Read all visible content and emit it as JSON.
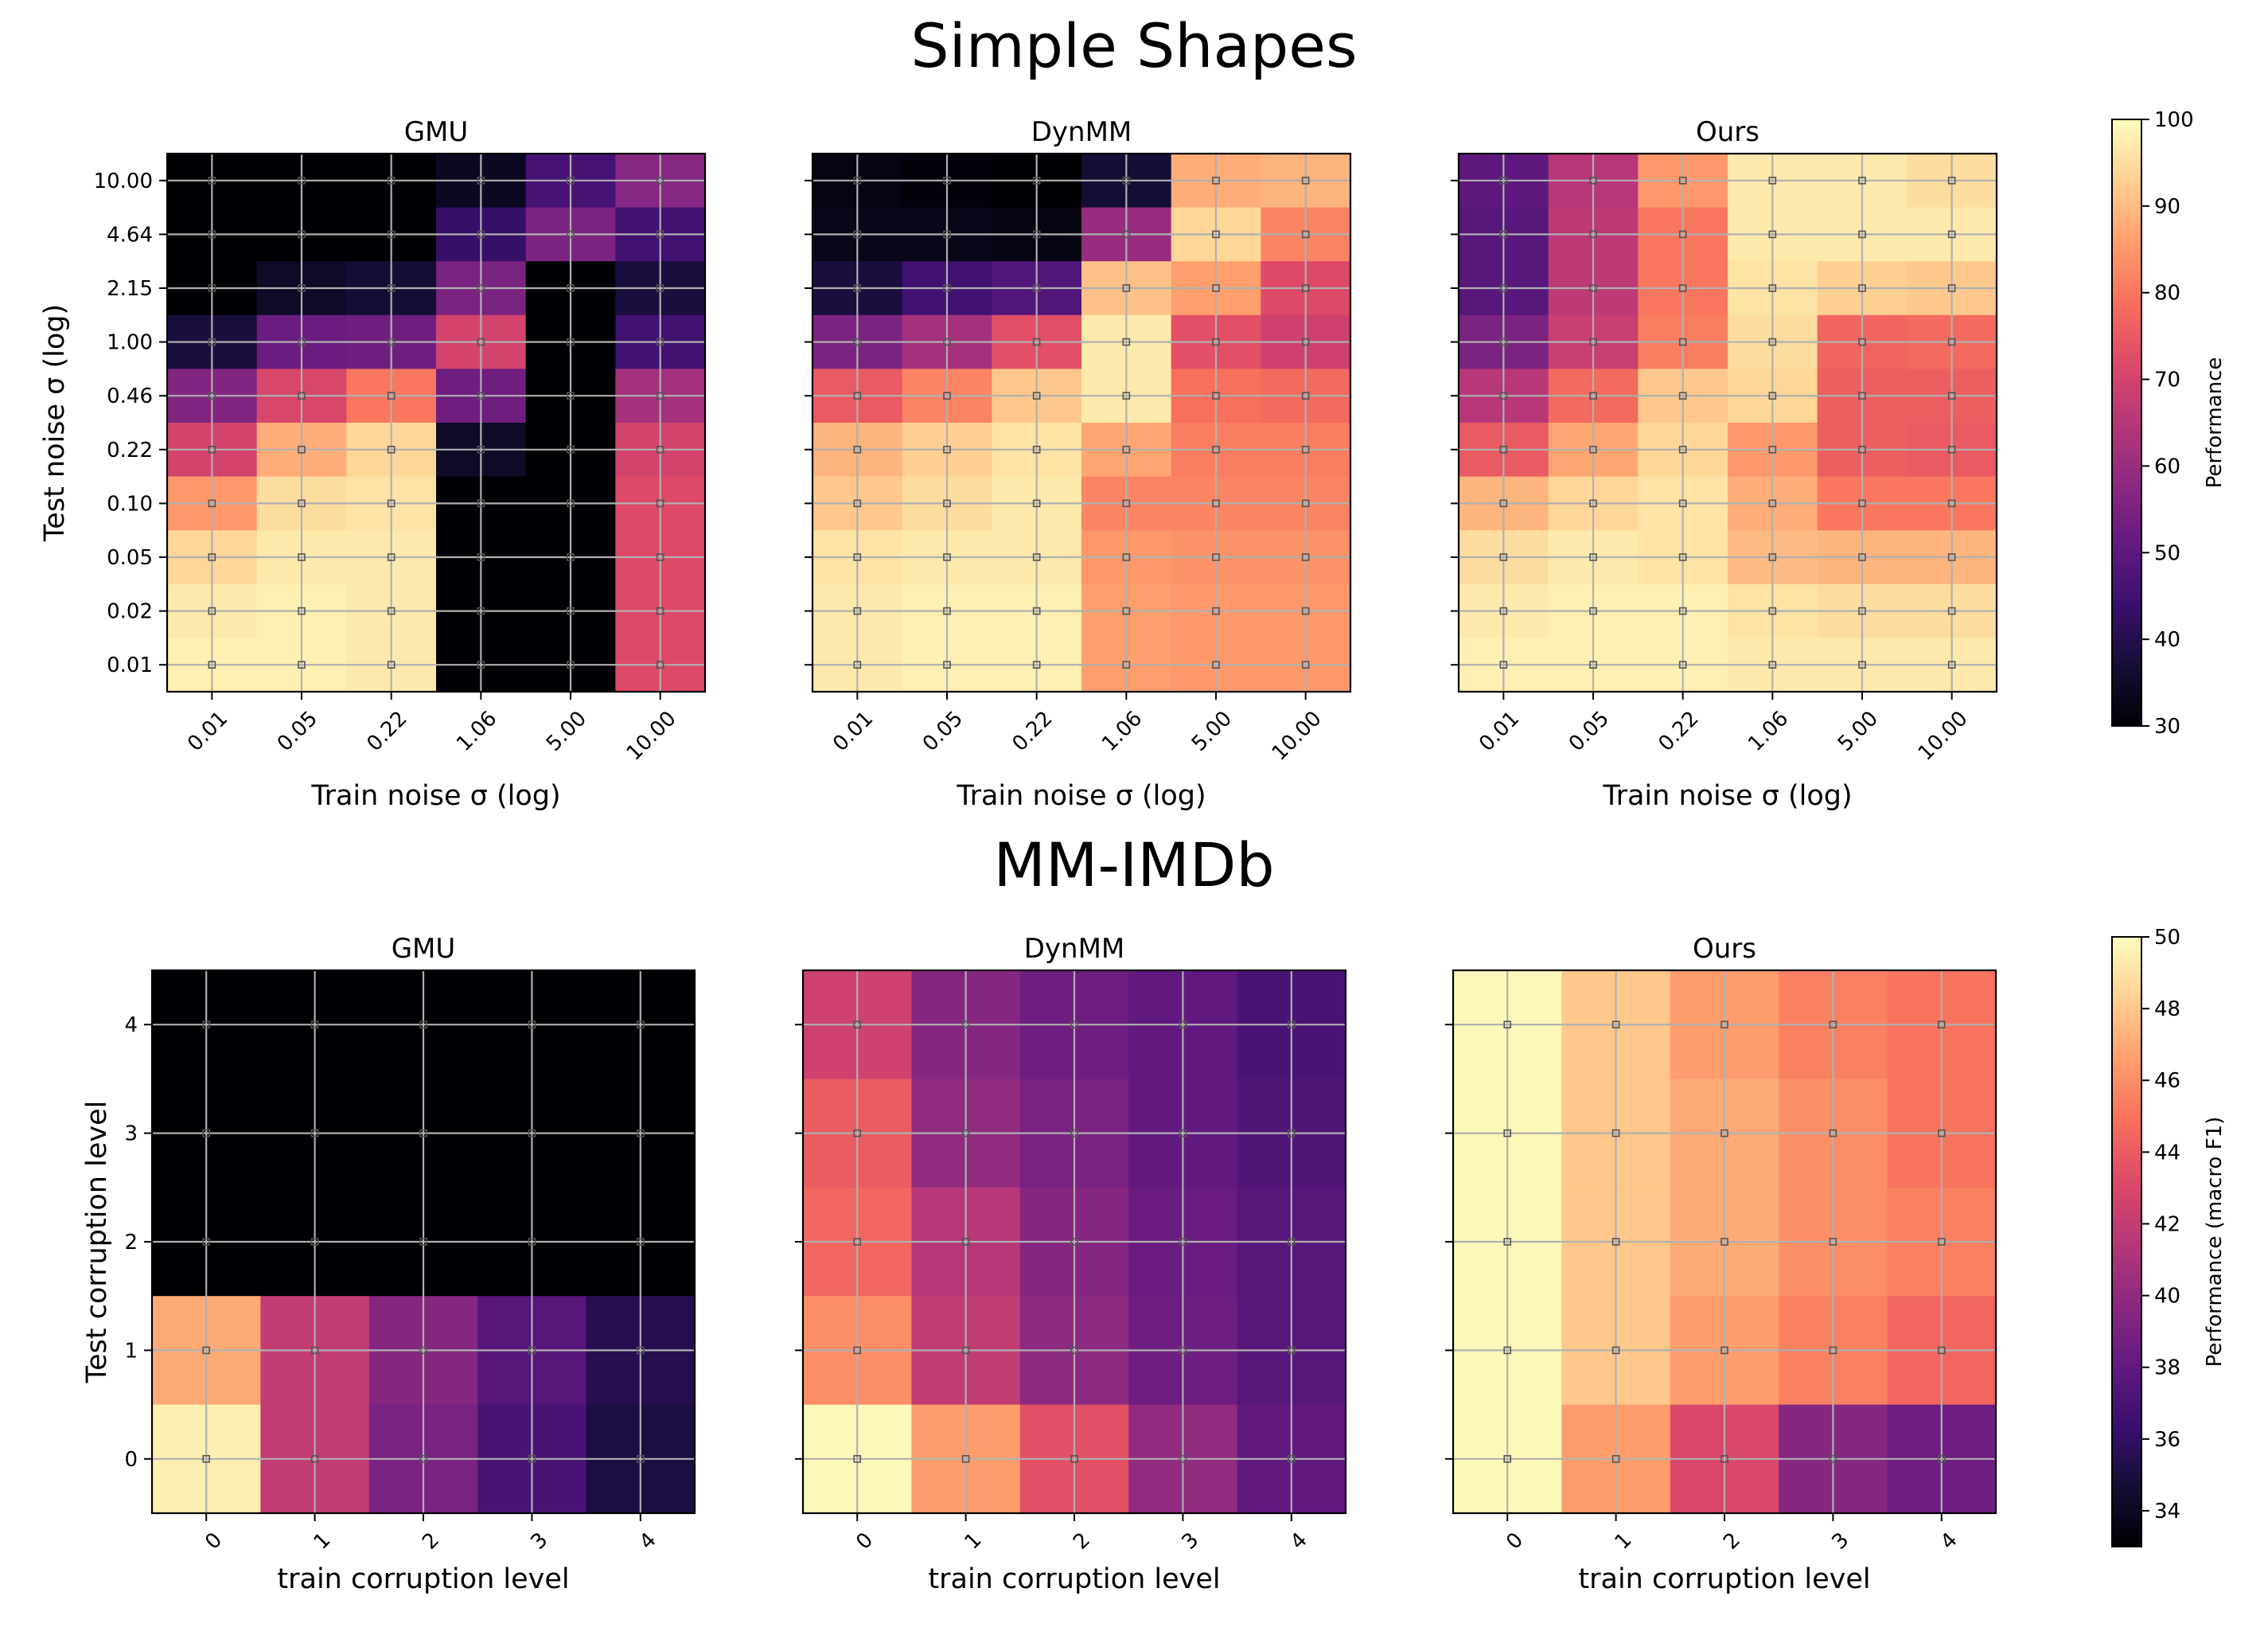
{
  "chart_data": [
    {
      "type": "heatmap",
      "figure_title": "Simple Shapes",
      "xlabel": "Train noise σ (log)",
      "ylabel": "Test noise σ (log)",
      "x_ticks": [
        "0.01",
        "0.05",
        "0.22",
        "1.06",
        "5.00",
        "10.00"
      ],
      "y_ticks": [
        "10.00",
        "4.64",
        "2.15",
        "1.00",
        "0.46",
        "0.22",
        "0.10",
        "0.05",
        "0.02",
        "0.01"
      ],
      "colorbar": {
        "label": "Performance",
        "min": 30,
        "max": 100,
        "ticks": [
          30,
          40,
          50,
          60,
          70,
          80,
          90,
          100
        ]
      },
      "panels": [
        {
          "title": "GMU",
          "values": [
            [
              30,
              30,
              30,
              34,
              46,
              57
            ],
            [
              30,
              30,
              30,
              43,
              55,
              45
            ],
            [
              30,
              35,
              37,
              55,
              30,
              38
            ],
            [
              38,
              52,
              53,
              70,
              30,
              45
            ],
            [
              56,
              71,
              80,
              53,
              30,
              62
            ],
            [
              70,
              88,
              94,
              35,
              30,
              70
            ],
            [
              85,
              95,
              96,
              30,
              30,
              72
            ],
            [
              94,
              97,
              97,
              30,
              30,
              72
            ],
            [
              97,
              98,
              97,
              30,
              30,
              72
            ],
            [
              98,
              98,
              97,
              30,
              30,
              72
            ]
          ]
        },
        {
          "title": "DynMM",
          "values": [
            [
              32,
              31,
              30,
              37,
              88,
              89
            ],
            [
              33,
              33,
              32,
              60,
              94,
              82
            ],
            [
              38,
              45,
              48,
              91,
              86,
              72
            ],
            [
              55,
              62,
              73,
              97,
              73,
              69
            ],
            [
              75,
              82,
              92,
              97,
              79,
              78
            ],
            [
              89,
              93,
              96,
              87,
              81,
              81
            ],
            [
              92,
              95,
              97,
              82,
              82,
              82
            ],
            [
              96,
              97,
              97,
              85,
              84,
              84
            ],
            [
              97,
              98,
              98,
              86,
              85,
              85
            ],
            [
              97,
              98,
              98,
              86,
              85,
              85
            ]
          ]
        },
        {
          "title": "Ours",
          "values": [
            [
              50,
              65,
              85,
              97,
              97,
              95
            ],
            [
              49,
              66,
              80,
              97,
              97,
              97
            ],
            [
              49,
              66,
              80,
              96,
              93,
              92
            ],
            [
              55,
              68,
              81,
              95,
              77,
              78
            ],
            [
              65,
              78,
              92,
              94,
              76,
              76
            ],
            [
              75,
              87,
              94,
              85,
              76,
              75
            ],
            [
              89,
              94,
              96,
              88,
              80,
              80
            ],
            [
              95,
              97,
              96,
              90,
              89,
              89
            ],
            [
              97,
              98,
              98,
              96,
              95,
              95
            ],
            [
              98,
              98,
              98,
              97,
              97,
              97
            ]
          ]
        }
      ]
    },
    {
      "type": "heatmap",
      "figure_title": "MM-IMDb",
      "xlabel": "train corruption level",
      "ylabel": "Test corruption level",
      "x_ticks": [
        "0",
        "1",
        "2",
        "3",
        "4"
      ],
      "y_ticks": [
        "4",
        "3",
        "2",
        "1",
        "0"
      ],
      "colorbar": {
        "label": "Performance (macro F1)",
        "min": 33,
        "max": 50,
        "ticks": [
          34,
          36,
          38,
          40,
          42,
          44,
          46,
          48,
          50
        ]
      },
      "panels": [
        {
          "title": "GMU",
          "values": [
            [
              33,
              33,
              33,
              33,
              33
            ],
            [
              33,
              33,
              33,
              33,
              33
            ],
            [
              33,
              33,
              33,
              33,
              33
            ],
            [
              47,
              42,
              39.5,
              37.5,
              35.5
            ],
            [
              49.5,
              42,
              39,
              37,
              35
            ]
          ]
        },
        {
          "title": "DynMM",
          "values": [
            [
              42.5,
              39.5,
              38.5,
              38,
              37
            ],
            [
              44,
              40,
              39,
              38,
              37.3
            ],
            [
              44.5,
              41.5,
              39.5,
              38.3,
              37.5
            ],
            [
              46,
              42,
              39.8,
              38.5,
              37.5
            ],
            [
              49.8,
              46.5,
              43.5,
              40,
              38
            ]
          ]
        },
        {
          "title": "Ours",
          "values": [
            [
              49.8,
              48,
              46.5,
              45.5,
              45
            ],
            [
              49.8,
              48,
              47,
              46,
              45
            ],
            [
              49.8,
              48,
              47,
              46,
              45.5
            ],
            [
              49.8,
              48,
              46.5,
              45.5,
              44.5
            ],
            [
              49.8,
              46.5,
              43,
              39.5,
              38.5
            ]
          ]
        }
      ]
    }
  ]
}
